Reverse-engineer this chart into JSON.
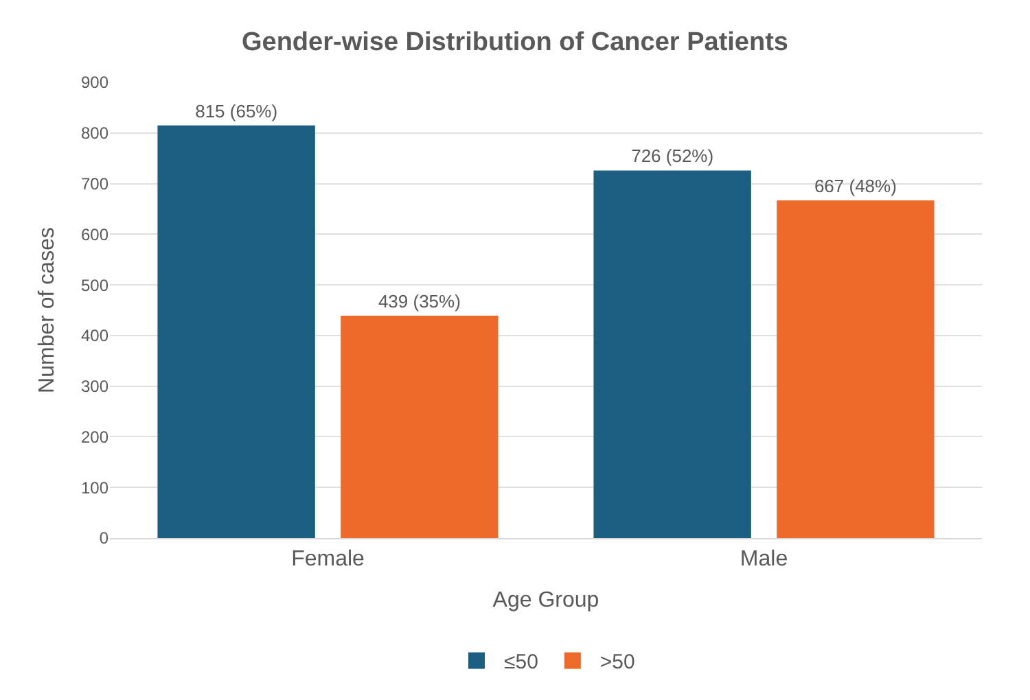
{
  "chart_data": {
    "type": "bar",
    "title": "Gender-wise Distribution of Cancer Patients",
    "xlabel": "Age Group",
    "ylabel": "Number of cases",
    "categories": [
      "Female",
      "Male"
    ],
    "series": [
      {
        "name": "≤50",
        "color": "#1b5e82",
        "values": [
          815,
          726
        ],
        "value_labels": [
          "815 (65%)",
          "726 (52%)"
        ]
      },
      {
        "name": ">50",
        "color": "#ec6a2a",
        "values": [
          439,
          667
        ],
        "value_labels": [
          "439 (35%)",
          "667 (48%)"
        ]
      }
    ],
    "ylim": [
      0,
      900
    ],
    "yticks": [
      0,
      100,
      200,
      300,
      400,
      500,
      600,
      700,
      800,
      900
    ],
    "grid": "y",
    "legend": "bottom"
  }
}
